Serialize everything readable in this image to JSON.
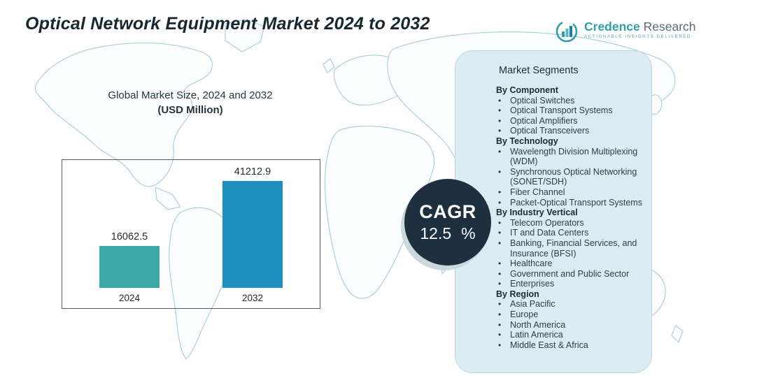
{
  "title": "Optical Network Equipment Market 2024 to 2032",
  "logo": {
    "brand_primary": "Credence",
    "brand_secondary": "Research",
    "tagline": "Actionable Insights Delivered"
  },
  "chart_data": {
    "type": "bar",
    "title": "Global Market Size, 2024 and 2032",
    "subtitle": "(USD Million)",
    "categories": [
      "2024",
      "2032"
    ],
    "values": [
      16062.5,
      41212.9
    ],
    "value_labels": [
      "16062.5",
      "41212.9"
    ],
    "xlabel": "",
    "ylabel": "",
    "unit": "USD Million",
    "ylim": [
      0,
      50000
    ],
    "grid": false,
    "legend": false,
    "bar_colors": [
      "#3ea7a7",
      "#1e8fbe"
    ]
  },
  "cagr": {
    "label": "CAGR",
    "value": "12.5",
    "unit": "%"
  },
  "segments": {
    "title": "Market Segments",
    "groups": [
      {
        "heading": "By Component",
        "items": [
          "Optical Switches",
          "Optical Transport Systems",
          "Optical Amplifiers",
          "Optical Transceivers"
        ]
      },
      {
        "heading": "By  Technology",
        "items": [
          "Wavelength Division Multiplexing (WDM)",
          "Synchronous Optical Networking (SONET/SDH)",
          "Fiber Channel",
          "Packet-Optical Transport Systems"
        ]
      },
      {
        "heading": "By Industry Vertical",
        "items": [
          "Telecom Operators",
          "IT and Data Centers",
          "Banking, Financial Services, and Insurance (BFSI)",
          "Healthcare",
          "Government and Public Sector",
          "Enterprises"
        ]
      },
      {
        "heading": "By Region",
        "items": [
          "Asia Pacific",
          "Europe",
          "North America",
          "Latin America",
          "Middle East & Africa"
        ]
      }
    ]
  },
  "colors": {
    "accent_teal": "#2f9fab",
    "bar_2024": "#3ea7a7",
    "bar_2032": "#1e8fbe",
    "cagr_circle": "#1e3040",
    "panel_bg": "#dcecf5",
    "map_line": "#a3cbd9",
    "title_text": "#162730"
  }
}
